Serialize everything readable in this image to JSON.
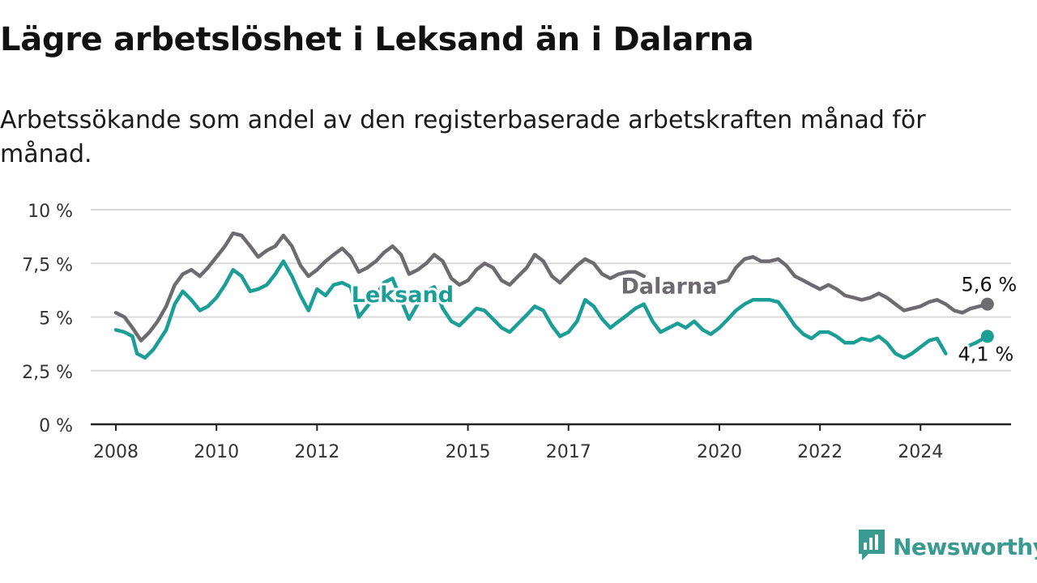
{
  "title": "Lägre arbetslöshet i Leksand än i Dalarna",
  "subtitle": "Arbetssökande som andel av den registerbaserade arbetskraften månad för månad.",
  "brand": {
    "name": "Newsworthy",
    "icon": "newsworthy-logo-icon",
    "color": "#3a9a90"
  },
  "chart_data": {
    "type": "line",
    "title": "Lägre arbetslöshet i Leksand än i Dalarna",
    "subtitle": "Arbetssökande som andel av den registerbaserade arbetskraften månad för månad.",
    "xlabel": "",
    "ylabel": "",
    "xlim": [
      2007.5,
      2025.8
    ],
    "ylim": [
      0,
      10
    ],
    "x_ticks": [
      {
        "value": 2008,
        "label": "2008"
      },
      {
        "value": 2010,
        "label": "2010"
      },
      {
        "value": 2012,
        "label": "2012"
      },
      {
        "value": 2015,
        "label": "2015"
      },
      {
        "value": 2017,
        "label": "2017"
      },
      {
        "value": 2020,
        "label": "2020"
      },
      {
        "value": 2022,
        "label": "2022"
      },
      {
        "value": 2024,
        "label": "2024"
      }
    ],
    "y_ticks": [
      {
        "value": 0,
        "label": "0 %"
      },
      {
        "value": 2.5,
        "label": "2,5 %"
      },
      {
        "value": 5,
        "label": "5 %"
      },
      {
        "value": 7.5,
        "label": "7,5 %"
      },
      {
        "value": 10,
        "label": "10 %"
      }
    ],
    "grid": true,
    "legend": "direct labels",
    "series": [
      {
        "name": "Dalarna",
        "color": "#6d6b70",
        "end_label": "5,6 %",
        "points": [
          [
            2008.0,
            5.2
          ],
          [
            2008.17,
            5.0
          ],
          [
            2008.33,
            4.5
          ],
          [
            2008.5,
            3.9
          ],
          [
            2008.67,
            4.3
          ],
          [
            2008.83,
            4.8
          ],
          [
            2009.0,
            5.5
          ],
          [
            2009.17,
            6.5
          ],
          [
            2009.33,
            7.0
          ],
          [
            2009.5,
            7.2
          ],
          [
            2009.67,
            6.9
          ],
          [
            2009.83,
            7.3
          ],
          [
            2010.0,
            7.8
          ],
          [
            2010.17,
            8.3
          ],
          [
            2010.33,
            8.9
          ],
          [
            2010.5,
            8.8
          ],
          [
            2010.67,
            8.3
          ],
          [
            2010.83,
            7.8
          ],
          [
            2011.0,
            8.1
          ],
          [
            2011.17,
            8.3
          ],
          [
            2011.33,
            8.8
          ],
          [
            2011.5,
            8.3
          ],
          [
            2011.67,
            7.4
          ],
          [
            2011.83,
            6.9
          ],
          [
            2012.0,
            7.2
          ],
          [
            2012.17,
            7.6
          ],
          [
            2012.33,
            7.9
          ],
          [
            2012.5,
            8.2
          ],
          [
            2012.67,
            7.8
          ],
          [
            2012.83,
            7.1
          ],
          [
            2013.0,
            7.3
          ],
          [
            2013.17,
            7.6
          ],
          [
            2013.33,
            8.0
          ],
          [
            2013.5,
            8.3
          ],
          [
            2013.67,
            7.9
          ],
          [
            2013.83,
            7.0
          ],
          [
            2014.0,
            7.2
          ],
          [
            2014.17,
            7.5
          ],
          [
            2014.33,
            7.9
          ],
          [
            2014.5,
            7.6
          ],
          [
            2014.67,
            6.8
          ],
          [
            2014.83,
            6.5
          ],
          [
            2015.0,
            6.7
          ],
          [
            2015.17,
            7.2
          ],
          [
            2015.33,
            7.5
          ],
          [
            2015.5,
            7.3
          ],
          [
            2015.67,
            6.7
          ],
          [
            2015.83,
            6.5
          ],
          [
            2016.0,
            6.9
          ],
          [
            2016.17,
            7.3
          ],
          [
            2016.33,
            7.9
          ],
          [
            2016.5,
            7.6
          ],
          [
            2016.67,
            6.9
          ],
          [
            2016.83,
            6.6
          ],
          [
            2017.0,
            7.0
          ],
          [
            2017.17,
            7.4
          ],
          [
            2017.33,
            7.7
          ],
          [
            2017.5,
            7.5
          ],
          [
            2017.67,
            7.0
          ],
          [
            2017.83,
            6.8
          ],
          [
            2018.0,
            7.0
          ],
          [
            2018.17,
            7.1
          ],
          [
            2018.33,
            7.1
          ],
          [
            2018.5,
            6.9
          ],
          null,
          [
            2019.9,
            6.5
          ],
          [
            2020.0,
            6.6
          ],
          [
            2020.17,
            6.7
          ],
          [
            2020.33,
            7.3
          ],
          [
            2020.5,
            7.7
          ],
          [
            2020.67,
            7.8
          ],
          [
            2020.83,
            7.6
          ],
          [
            2021.0,
            7.6
          ],
          [
            2021.17,
            7.7
          ],
          [
            2021.33,
            7.4
          ],
          [
            2021.5,
            6.9
          ],
          [
            2021.67,
            6.7
          ],
          [
            2021.83,
            6.5
          ],
          [
            2022.0,
            6.3
          ],
          [
            2022.17,
            6.5
          ],
          [
            2022.33,
            6.3
          ],
          [
            2022.5,
            6.0
          ],
          [
            2022.67,
            5.9
          ],
          [
            2022.83,
            5.8
          ],
          [
            2023.0,
            5.9
          ],
          [
            2023.17,
            6.1
          ],
          [
            2023.33,
            5.9
          ],
          [
            2023.5,
            5.6
          ],
          [
            2023.67,
            5.3
          ],
          [
            2023.83,
            5.4
          ],
          [
            2024.0,
            5.5
          ],
          [
            2024.17,
            5.7
          ],
          [
            2024.33,
            5.8
          ],
          [
            2024.5,
            5.6
          ],
          [
            2024.67,
            5.3
          ],
          [
            2024.83,
            5.2
          ],
          [
            2025.0,
            5.4
          ],
          [
            2025.17,
            5.5
          ],
          [
            2025.33,
            5.6
          ]
        ]
      },
      {
        "name": "Leksand",
        "color": "#1a9e96",
        "end_label": "4,1 %",
        "points": [
          [
            2008.0,
            4.4
          ],
          [
            2008.17,
            4.3
          ],
          [
            2008.33,
            4.1
          ],
          [
            2008.42,
            3.3
          ],
          [
            2008.58,
            3.1
          ],
          [
            2008.75,
            3.5
          ],
          [
            2009.0,
            4.4
          ],
          [
            2009.17,
            5.6
          ],
          [
            2009.33,
            6.2
          ],
          [
            2009.5,
            5.8
          ],
          [
            2009.67,
            5.3
          ],
          [
            2009.83,
            5.5
          ],
          [
            2010.0,
            5.9
          ],
          [
            2010.17,
            6.5
          ],
          [
            2010.33,
            7.2
          ],
          [
            2010.5,
            6.9
          ],
          [
            2010.67,
            6.2
          ],
          [
            2010.83,
            6.3
          ],
          [
            2011.0,
            6.5
          ],
          [
            2011.17,
            7.0
          ],
          [
            2011.33,
            7.6
          ],
          [
            2011.5,
            6.9
          ],
          [
            2011.67,
            6.0
          ],
          [
            2011.83,
            5.3
          ],
          [
            2012.0,
            6.3
          ],
          [
            2012.17,
            6.0
          ],
          [
            2012.33,
            6.5
          ],
          [
            2012.5,
            6.6
          ],
          [
            2012.67,
            6.4
          ],
          [
            2012.83,
            5.0
          ],
          [
            2013.0,
            5.5
          ],
          [
            2013.17,
            6.0
          ],
          [
            2013.33,
            6.6
          ],
          [
            2013.5,
            6.8
          ],
          [
            2013.67,
            5.8
          ],
          [
            2013.83,
            4.9
          ],
          [
            2014.0,
            5.6
          ],
          [
            2014.17,
            6.2
          ],
          [
            2014.33,
            6.4
          ],
          [
            2014.5,
            5.4
          ],
          [
            2014.67,
            4.8
          ],
          [
            2014.83,
            4.6
          ],
          [
            2015.0,
            5.0
          ],
          [
            2015.17,
            5.4
          ],
          [
            2015.33,
            5.3
          ],
          [
            2015.5,
            4.9
          ],
          [
            2015.67,
            4.5
          ],
          [
            2015.83,
            4.3
          ],
          [
            2016.0,
            4.7
          ],
          [
            2016.17,
            5.1
          ],
          [
            2016.33,
            5.5
          ],
          [
            2016.5,
            5.3
          ],
          [
            2016.67,
            4.6
          ],
          [
            2016.83,
            4.1
          ],
          [
            2017.0,
            4.3
          ],
          [
            2017.17,
            4.8
          ],
          [
            2017.33,
            5.8
          ],
          [
            2017.5,
            5.5
          ],
          [
            2017.67,
            4.9
          ],
          [
            2017.83,
            4.5
          ],
          [
            2018.0,
            4.8
          ],
          [
            2018.17,
            5.1
          ],
          [
            2018.33,
            5.4
          ],
          [
            2018.5,
            5.6
          ],
          [
            2018.67,
            4.8
          ],
          [
            2018.83,
            4.3
          ],
          [
            2019.0,
            4.5
          ],
          [
            2019.17,
            4.7
          ],
          [
            2019.33,
            4.5
          ],
          [
            2019.5,
            4.8
          ],
          [
            2019.67,
            4.4
          ],
          [
            2019.83,
            4.2
          ],
          [
            2020.0,
            4.5
          ],
          [
            2020.17,
            4.9
          ],
          [
            2020.33,
            5.3
          ],
          [
            2020.5,
            5.6
          ],
          [
            2020.67,
            5.8
          ],
          [
            2020.83,
            5.8
          ],
          [
            2021.0,
            5.8
          ],
          [
            2021.17,
            5.7
          ],
          [
            2021.33,
            5.2
          ],
          [
            2021.5,
            4.6
          ],
          [
            2021.67,
            4.2
          ],
          [
            2021.83,
            4.0
          ],
          [
            2022.0,
            4.3
          ],
          [
            2022.17,
            4.3
          ],
          [
            2022.33,
            4.1
          ],
          [
            2022.5,
            3.8
          ],
          [
            2022.67,
            3.8
          ],
          [
            2022.83,
            4.0
          ],
          [
            2023.0,
            3.9
          ],
          [
            2023.17,
            4.1
          ],
          [
            2023.33,
            3.8
          ],
          [
            2023.5,
            3.3
          ],
          [
            2023.67,
            3.1
          ],
          [
            2023.83,
            3.3
          ],
          [
            2024.0,
            3.6
          ],
          [
            2024.17,
            3.9
          ],
          [
            2024.33,
            4.0
          ],
          [
            2024.5,
            3.3
          ],
          null,
          [
            2024.9,
            3.6
          ],
          [
            2025.1,
            3.8
          ],
          [
            2025.33,
            4.1
          ]
        ]
      }
    ],
    "annotations": [
      {
        "text": "Dalarna",
        "series": "Dalarna",
        "x": 2019.0,
        "y": 6.1
      },
      {
        "text": "Leksand",
        "series": "Leksand",
        "x": 2013.7,
        "y": 5.7
      }
    ]
  }
}
